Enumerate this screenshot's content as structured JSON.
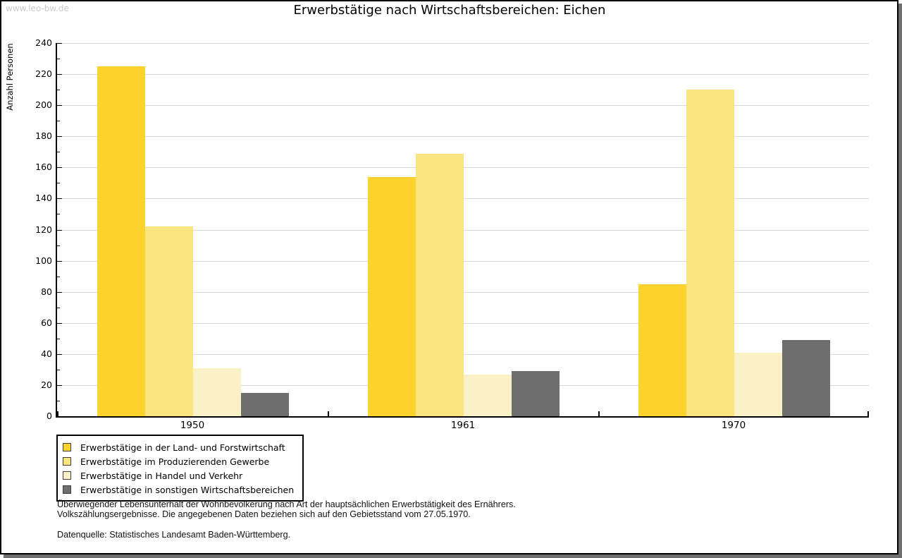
{
  "page": {
    "watermark": "www.leo-bw.de"
  },
  "chart_data": {
    "type": "bar",
    "title": "Erwerbstätige nach Wirtschaftsbereichen: Eichen",
    "xlabel": "",
    "ylabel": "Anzahl Personen",
    "categories": [
      "1950",
      "1961",
      "1970"
    ],
    "series": [
      {
        "name": "Erwerbstätige in der Land- und Forstwirtschaft",
        "color": "#FCD22D",
        "values": [
          225,
          154,
          85
        ]
      },
      {
        "name": "Erwerbstätige im Produzierenden Gewerbe",
        "color": "#FAE57F",
        "values": [
          122,
          169,
          210
        ]
      },
      {
        "name": "Erwerbstätige in Handel und Verkehr",
        "color": "#FAF2C6",
        "values": [
          31,
          27,
          41
        ]
      },
      {
        "name": "Erwerbstätige in sonstigen Wirtschaftsbereichen",
        "color": "#6E6E6E",
        "values": [
          15,
          29,
          49
        ]
      }
    ],
    "ylim": [
      0,
      240
    ],
    "ytick_step": 20,
    "ytick_minor_step": 10,
    "ytick_labels": [
      "0",
      "20",
      "40",
      "60",
      "80",
      "100",
      "120",
      "140",
      "160",
      "180",
      "200",
      "220",
      "240"
    ],
    "grid": true,
    "legend_position": "bottom-left",
    "grid_color": "#D8D8D8"
  },
  "footer": {
    "note_line1": "Überwiegender Lebensunterhalt der Wohnbevölkerung nach Art der hauptsächlichen Erwerbstätigkeit des Ernährers.",
    "note_line2": "Volkszählungsergebnisse. Die angegebenen Daten beziehen sich auf den Gebietsstand vom 27.05.1970.",
    "source": "Datenquelle: Statistisches Landesamt Baden-Württemberg."
  }
}
